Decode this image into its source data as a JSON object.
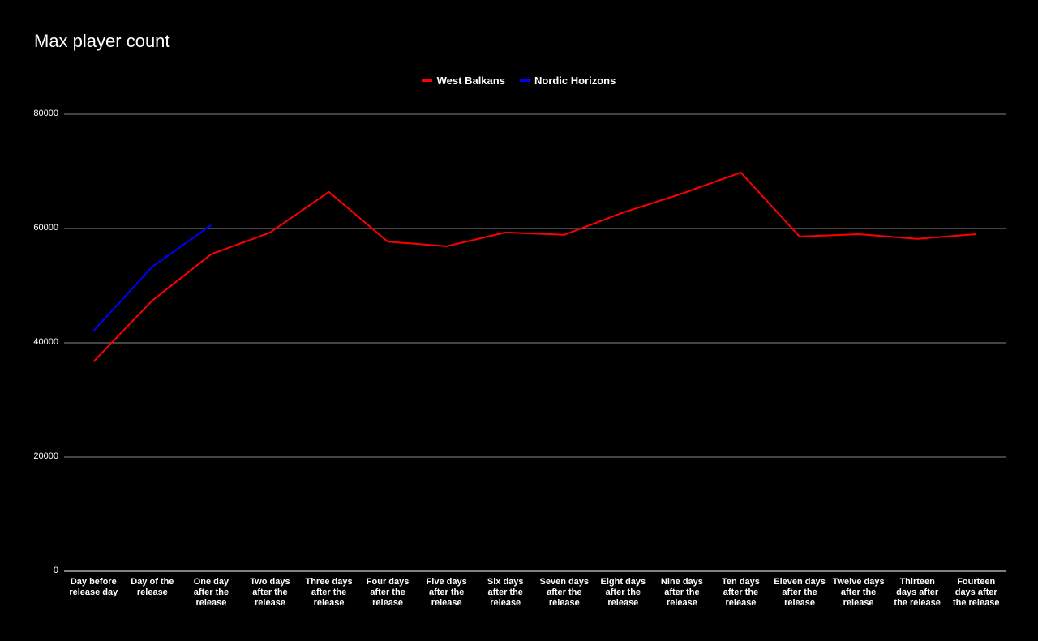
{
  "chart_data": {
    "type": "line",
    "title": "Max player count",
    "xlabel": "",
    "ylabel": "",
    "ylim": [
      0,
      80000
    ],
    "yticks": [
      0,
      20000,
      40000,
      60000,
      80000
    ],
    "grid": true,
    "legend_position": "top",
    "categories": [
      "Day before release day",
      "Day of the release",
      "One day after the release",
      "Two days after the release",
      "Three days after the release",
      "Four days after the release",
      "Five days after the release",
      "Six days after the release",
      "Seven days after the release",
      "Eight days after the release",
      "Nine days after the release",
      "Ten days after the release",
      "Eleven days after the release",
      "Twelve days after the release",
      "Thirteen days after the release",
      "Fourteen days after the release"
    ],
    "series": [
      {
        "name": "West Balkans",
        "color": "#ff0000",
        "values": [
          36700,
          47400,
          55500,
          59300,
          66400,
          57700,
          56900,
          59300,
          58900,
          62800,
          66100,
          69800,
          58600,
          59000,
          58200,
          59000
        ]
      },
      {
        "name": "Nordic Horizons",
        "color": "#0000ff",
        "values": [
          42100,
          53300,
          60600,
          null,
          null,
          null,
          null,
          null,
          null,
          null,
          null,
          null,
          null,
          null,
          null,
          null
        ]
      }
    ]
  },
  "labels": {
    "title": "Max player count",
    "legend": [
      "West Balkans",
      "Nordic Horizons"
    ],
    "yticks": [
      "80000",
      "60000",
      "40000",
      "20000",
      "0"
    ],
    "x": [
      "Day before release day",
      "Day of the release",
      "One day after the release",
      "Two days after the release",
      "Three days after the release",
      "Four days after the release",
      "Five days after the release",
      "Six days after the release",
      "Seven days after the release",
      "Eight days after the release",
      "Nine days after the release",
      "Ten days after the release",
      "Eleven days after the release",
      "Twelve days after the release",
      "Thirteen days after the release",
      "Fourteen days after the release"
    ]
  }
}
